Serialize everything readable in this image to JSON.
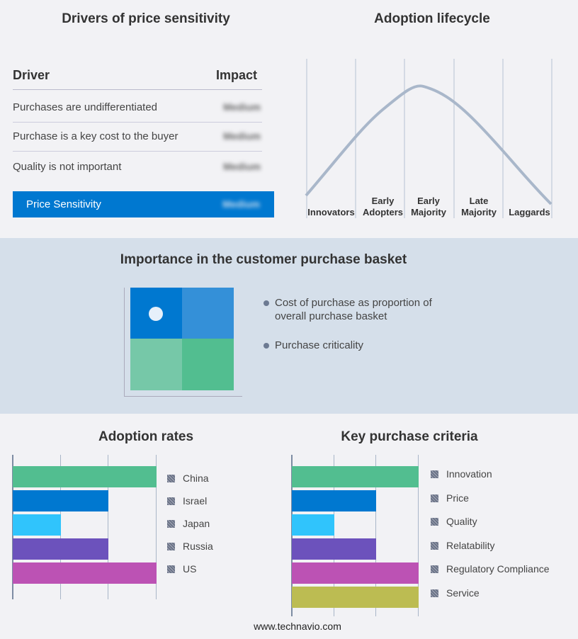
{
  "drivers": {
    "title": "Drivers of price sensitivity",
    "col_driver": "Driver",
    "col_impact": "Impact",
    "rows": [
      {
        "driver": "Purchases are undifferentiated",
        "impact": "Medium"
      },
      {
        "driver": "Purchase is a key cost to the buyer",
        "impact": "Medium"
      },
      {
        "driver": "Quality is not important",
        "impact": "Medium"
      }
    ],
    "summary": {
      "label": "Price Sensitivity",
      "impact": "Medium"
    },
    "accent": "#0078d0"
  },
  "lifecycle": {
    "title": "Adoption lifecycle",
    "stages": [
      "Innovators",
      "Early Adopters",
      "Early Majority",
      "Late Majority",
      "Laggards"
    ]
  },
  "basket": {
    "title": "Importance in the customer purchase basket",
    "legend": [
      "Cost of purchase as proportion of overall purchase basket",
      "Purchase criticality"
    ],
    "colors": [
      "#0078d0",
      "#3490d8",
      "#76c8a8",
      "#52be90"
    ]
  },
  "chart_data": [
    {
      "type": "bar",
      "title": "Adoption rates",
      "categories": [
        "China",
        "Israel",
        "Japan",
        "Russia",
        "US"
      ],
      "values": [
        3,
        2,
        1,
        2,
        3
      ],
      "xlim": [
        0,
        3
      ],
      "grid": true,
      "legend": "right",
      "colors": [
        "#52be90",
        "#0078d0",
        "#30c4fc",
        "#6c52bc",
        "#bc52b4"
      ]
    },
    {
      "type": "bar",
      "title": "Key purchase criteria",
      "categories": [
        "Innovation",
        "Price",
        "Quality",
        "Relatability",
        "Regulatory Compliance",
        "Service"
      ],
      "values": [
        3,
        2,
        1,
        2,
        3,
        3
      ],
      "xlim": [
        0,
        3
      ],
      "grid": true,
      "legend": "right",
      "colors": [
        "#52be90",
        "#0078d0",
        "#30c4fc",
        "#6c52bc",
        "#bc52b4",
        "#bcbc52"
      ]
    }
  ],
  "footer": "www.technavio.com"
}
